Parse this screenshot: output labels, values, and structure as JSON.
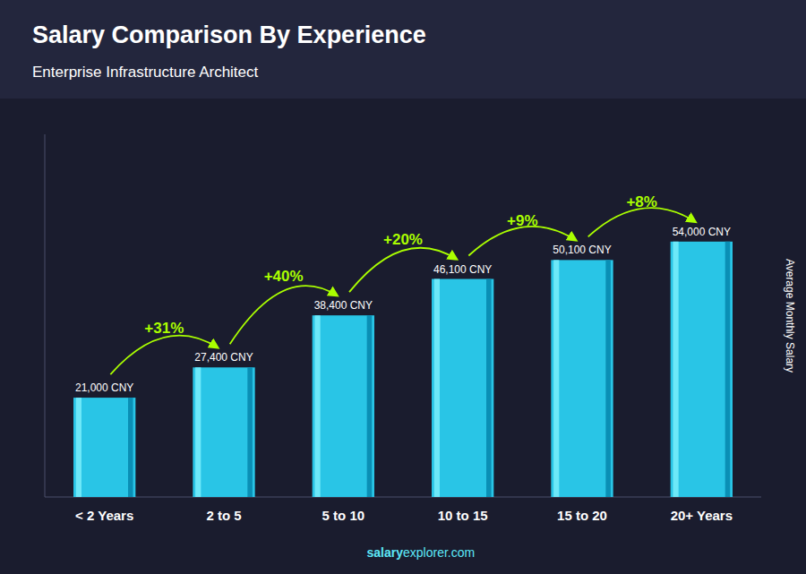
{
  "chart_data": {
    "type": "bar",
    "title": "Salary Comparison By Experience",
    "subtitle": "Enterprise Infrastructure Architect",
    "ylabel": "Average Monthly Salary",
    "categories": [
      "< 2 Years",
      "2 to 5",
      "5 to 10",
      "10 to 15",
      "15 to 20",
      "20+ Years"
    ],
    "values": [
      21000,
      27400,
      38400,
      46100,
      50100,
      54000
    ],
    "value_labels": [
      "21,000 CNY",
      "27,400 CNY",
      "38,400 CNY",
      "46,100 CNY",
      "50,100 CNY",
      "54,000 CNY"
    ],
    "data_labels": true,
    "annotations": [
      "+31%",
      "+40%",
      "+20%",
      "+9%",
      "+8%"
    ],
    "watermark": [
      "salary",
      "explorer.com"
    ],
    "color": "#29c5e6",
    "ylim": [
      0,
      76680
    ],
    "grid": false,
    "tick_labels": "x"
  }
}
